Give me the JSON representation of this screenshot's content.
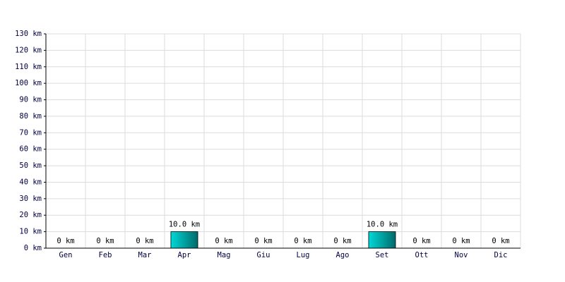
{
  "chart_data": {
    "type": "bar",
    "categories": [
      "Gen",
      "Feb",
      "Mar",
      "Apr",
      "Mag",
      "Giu",
      "Lug",
      "Ago",
      "Set",
      "Ott",
      "Nov",
      "Dic"
    ],
    "values": [
      0,
      0,
      0,
      10,
      0,
      0,
      0,
      0,
      10,
      0,
      0,
      0
    ],
    "value_labels": [
      "0 km",
      "0 km",
      "0 km",
      "10.0 km",
      "0 km",
      "0 km",
      "0 km",
      "0 km",
      "10.0 km",
      "0 km",
      "0 km",
      "0 km"
    ],
    "color": "#00d8d8",
    "ylim": [
      0,
      130
    ],
    "yticks": [
      {
        "value": 0,
        "label": "0 km"
      },
      {
        "value": 10,
        "label": "10 km"
      },
      {
        "value": 20,
        "label": "20 km"
      },
      {
        "value": 30,
        "label": "30 km"
      },
      {
        "value": 40,
        "label": "40 km"
      },
      {
        "value": 50,
        "label": "50 km"
      },
      {
        "value": 60,
        "label": "60 km"
      },
      {
        "value": 70,
        "label": "70 km"
      },
      {
        "value": 80,
        "label": "80 km"
      },
      {
        "value": 90,
        "label": "90 km"
      },
      {
        "value": 100,
        "label": "100 km"
      },
      {
        "value": 110,
        "label": "110 km"
      },
      {
        "value": 120,
        "label": "120 km"
      },
      {
        "value": 130,
        "label": "130 km"
      }
    ],
    "grid": true
  }
}
